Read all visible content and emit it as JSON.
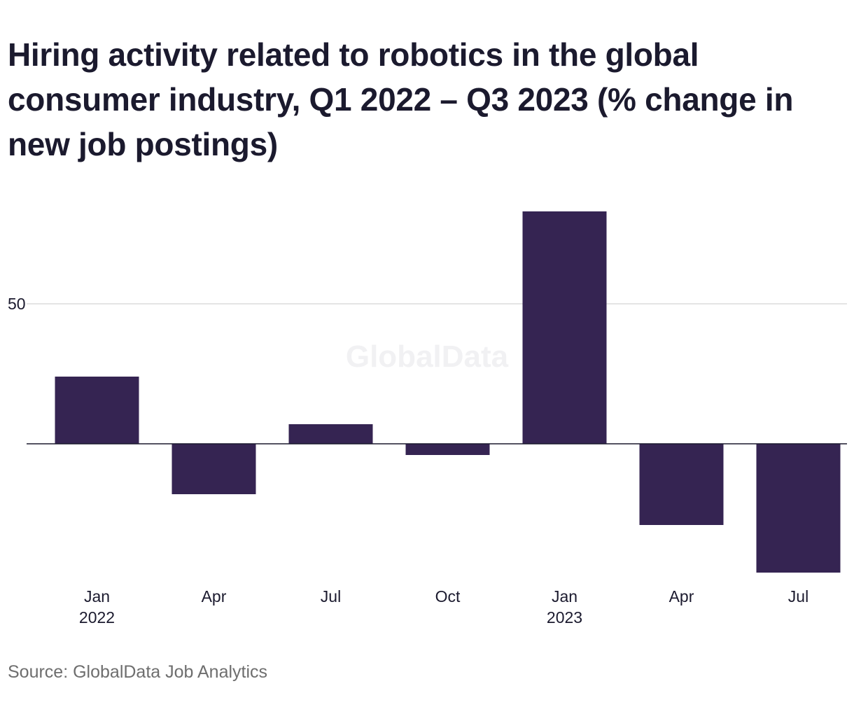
{
  "chart_data": {
    "type": "bar",
    "title": "Hiring activity related to robotics in the global consumer industry, Q1 2022 – Q3 2023 (% change in new job postings)",
    "xlabel": "",
    "ylabel": "",
    "categories": [
      {
        "label": "Jan",
        "sublabel": "2022"
      },
      {
        "label": "Apr",
        "sublabel": ""
      },
      {
        "label": "Jul",
        "sublabel": ""
      },
      {
        "label": "Oct",
        "sublabel": ""
      },
      {
        "label": "Jan",
        "sublabel": "2023"
      },
      {
        "label": "Apr",
        "sublabel": ""
      },
      {
        "label": "Jul",
        "sublabel": ""
      }
    ],
    "values": [
      24,
      -18,
      7,
      -4,
      83,
      -29,
      -46
    ],
    "ylim": [
      -50,
      100
    ],
    "yticks": [
      50
    ],
    "grid": true,
    "bar_color": "#352452",
    "watermark": "GlobalData",
    "source": "Source: GlobalData Job Analytics"
  }
}
